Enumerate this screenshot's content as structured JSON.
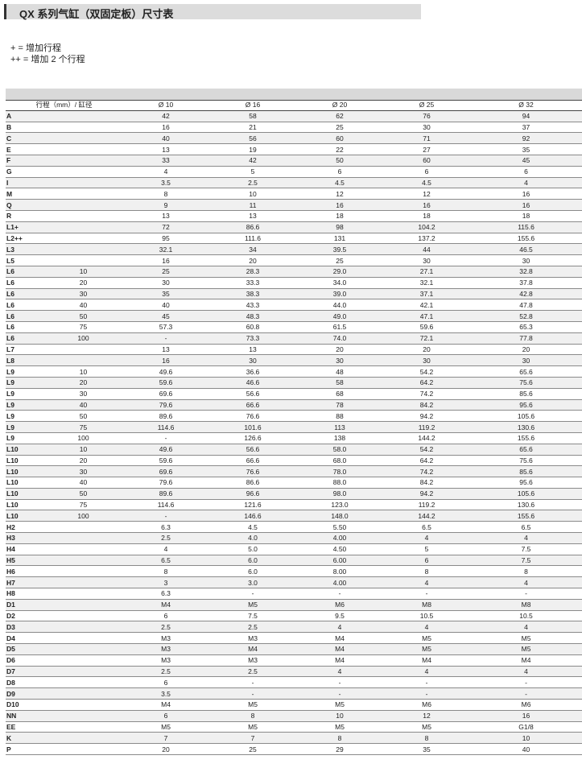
{
  "title": "QX 系列气缸（双固定板）尺寸表",
  "notes": [
    "+ = 增加行程",
    "++ = 增加 2 个行程"
  ],
  "table": {
    "header": [
      "行程（mm）/ 缸径",
      "Ø 10",
      "Ø 16",
      "Ø 20",
      "Ø 25",
      "Ø 32"
    ],
    "rows": [
      [
        "A",
        "",
        "42",
        "58",
        "62",
        "76",
        "94"
      ],
      [
        "B",
        "",
        "16",
        "21",
        "25",
        "30",
        "37"
      ],
      [
        "C",
        "",
        "40",
        "56",
        "60",
        "71",
        "92"
      ],
      [
        "E",
        "",
        "13",
        "19",
        "22",
        "27",
        "35"
      ],
      [
        "F",
        "",
        "33",
        "42",
        "50",
        "60",
        "45"
      ],
      [
        "G",
        "",
        "4",
        "5",
        "6",
        "6",
        "6"
      ],
      [
        "I",
        "",
        "3.5",
        "2.5",
        "4.5",
        "4.5",
        "4"
      ],
      [
        "M",
        "",
        "8",
        "10",
        "12",
        "12",
        "16"
      ],
      [
        "Q",
        "",
        "9",
        "11",
        "16",
        "16",
        "16"
      ],
      [
        "R",
        "",
        "13",
        "13",
        "18",
        "18",
        "18"
      ],
      [
        "L1+",
        "",
        "72",
        "86.6",
        "98",
        "104.2",
        "115.6"
      ],
      [
        "L2++",
        "",
        "95",
        "111.6",
        "131",
        "137.2",
        "155.6"
      ],
      [
        "L3",
        "",
        "32.1",
        "34",
        "39.5",
        "44",
        "46.5"
      ],
      [
        "L5",
        "",
        "16",
        "20",
        "25",
        "30",
        "30"
      ],
      [
        "L6",
        "10",
        "25",
        "28.3",
        "29.0",
        "27.1",
        "32.8"
      ],
      [
        "L6",
        "20",
        "30",
        "33.3",
        "34.0",
        "32.1",
        "37.8"
      ],
      [
        "L6",
        "30",
        "35",
        "38.3",
        "39.0",
        "37.1",
        "42.8"
      ],
      [
        "L6",
        "40",
        "40",
        "43.3",
        "44.0",
        "42.1",
        "47.8"
      ],
      [
        "L6",
        "50",
        "45",
        "48.3",
        "49.0",
        "47.1",
        "52.8"
      ],
      [
        "L6",
        "75",
        "57.3",
        "60.8",
        "61.5",
        "59.6",
        "65.3"
      ],
      [
        "L6",
        "100",
        "-",
        "73.3",
        "74.0",
        "72.1",
        "77.8"
      ],
      [
        "L7",
        "",
        "13",
        "13",
        "20",
        "20",
        "20"
      ],
      [
        "L8",
        "",
        "16",
        "30",
        "30",
        "30",
        "30"
      ],
      [
        "L9",
        "10",
        "49.6",
        "36.6",
        "48",
        "54.2",
        "65.6"
      ],
      [
        "L9",
        "20",
        "59.6",
        "46.6",
        "58",
        "64.2",
        "75.6"
      ],
      [
        "L9",
        "30",
        "69.6",
        "56.6",
        "68",
        "74.2",
        "85.6"
      ],
      [
        "L9",
        "40",
        "79.6",
        "66.6",
        "78",
        "84.2",
        "95.6"
      ],
      [
        "L9",
        "50",
        "89.6",
        "76.6",
        "88",
        "94.2",
        "105.6"
      ],
      [
        "L9",
        "75",
        "114.6",
        "101.6",
        "113",
        "119.2",
        "130.6"
      ],
      [
        "L9",
        "100",
        "-",
        "126.6",
        "138",
        "144.2",
        "155.6"
      ],
      [
        "L10",
        "10",
        "49.6",
        "56.6",
        "58.0",
        "54.2",
        "65.6"
      ],
      [
        "L10",
        "20",
        "59.6",
        "66.6",
        "68.0",
        "64.2",
        "75.6"
      ],
      [
        "L10",
        "30",
        "69.6",
        "76.6",
        "78.0",
        "74.2",
        "85.6"
      ],
      [
        "L10",
        "40",
        "79.6",
        "86.6",
        "88.0",
        "84.2",
        "95.6"
      ],
      [
        "L10",
        "50",
        "89.6",
        "96.6",
        "98.0",
        "94.2",
        "105.6"
      ],
      [
        "L10",
        "75",
        "114.6",
        "121.6",
        "123.0",
        "119.2",
        "130.6"
      ],
      [
        "L10",
        "100",
        "-",
        "146.6",
        "148.0",
        "144.2",
        "155.6"
      ],
      [
        "H2",
        "",
        "6.3",
        "4.5",
        "5.50",
        "6.5",
        "6.5"
      ],
      [
        "H3",
        "",
        "2.5",
        "4.0",
        "4.00",
        "4",
        "4"
      ],
      [
        "H4",
        "",
        "4",
        "5.0",
        "4.50",
        "5",
        "7.5"
      ],
      [
        "H5",
        "",
        "6.5",
        "6.0",
        "6.00",
        "6",
        "7.5"
      ],
      [
        "H6",
        "",
        "8",
        "6.0",
        "8.00",
        "8",
        "8"
      ],
      [
        "H7",
        "",
        "3",
        "3.0",
        "4.00",
        "4",
        "4"
      ],
      [
        "H8",
        "",
        "6.3",
        "-",
        "-",
        "-",
        "-"
      ],
      [
        "D1",
        "",
        "M4",
        "M5",
        "M6",
        "M8",
        "M8"
      ],
      [
        "D2",
        "",
        "6",
        "7.5",
        "9.5",
        "10.5",
        "10.5"
      ],
      [
        "D3",
        "",
        "2.5",
        "2.5",
        "4",
        "4",
        "4"
      ],
      [
        "D4",
        "",
        "M3",
        "M3",
        "M4",
        "M5",
        "M5"
      ],
      [
        "D5",
        "",
        "M3",
        "M4",
        "M4",
        "M5",
        "M5"
      ],
      [
        "D6",
        "",
        "M3",
        "M3",
        "M4",
        "M4",
        "M4"
      ],
      [
        "D7",
        "",
        "2.5",
        "2.5",
        "4",
        "4",
        "4"
      ],
      [
        "D8",
        "",
        "6",
        "-",
        "-",
        "-",
        "-"
      ],
      [
        "D9",
        "",
        "3.5",
        "-",
        "-",
        "-",
        "-"
      ],
      [
        "D10",
        "",
        "M4",
        "M5",
        "M5",
        "M6",
        "M6"
      ],
      [
        "NN",
        "",
        "6",
        "8",
        "10",
        "12",
        "16"
      ],
      [
        "EE",
        "",
        "M5",
        "M5",
        "M5",
        "M5",
        "G1/8"
      ],
      [
        "K",
        "",
        "7",
        "7",
        "8",
        "8",
        "10"
      ],
      [
        "P",
        "",
        "20",
        "25",
        "29",
        "35",
        "40"
      ]
    ]
  }
}
